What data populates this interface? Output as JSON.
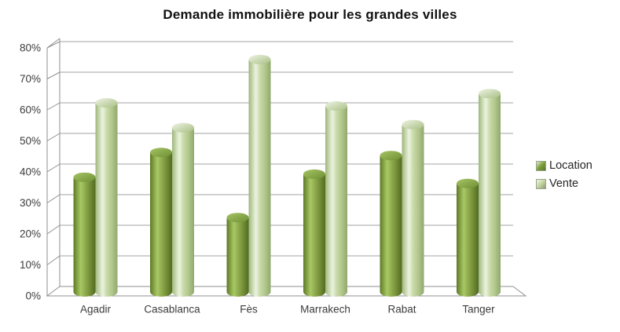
{
  "title": "Demande immobilière pour les grandes villes",
  "legend": [
    {
      "label": "Location",
      "color": "#7da23c"
    },
    {
      "label": "Vente",
      "color": "#c5d6a2"
    }
  ],
  "chart_data": {
    "type": "bar",
    "style": "3d-cylinder",
    "title": "Demande immobilière pour les grandes villes",
    "categories": [
      "Agadir",
      "Casablanca",
      "Fès",
      "Marrakech",
      "Rabat",
      "Tanger"
    ],
    "series": [
      {
        "name": "Location",
        "color": "#7da23c",
        "values": [
          37,
          45,
          24,
          38,
          44,
          35
        ]
      },
      {
        "name": "Vente",
        "color": "#c5d6a2",
        "values": [
          61,
          53,
          75,
          60,
          54,
          64
        ]
      }
    ],
    "xlabel": "",
    "ylabel": "",
    "ylim": [
      0,
      80
    ],
    "ytick_step": 10,
    "ytick_labels": [
      "0%",
      "10%",
      "20%",
      "30%",
      "40%",
      "50%",
      "60%",
      "70%",
      "80%"
    ],
    "grid": true,
    "legend_position": "right"
  }
}
